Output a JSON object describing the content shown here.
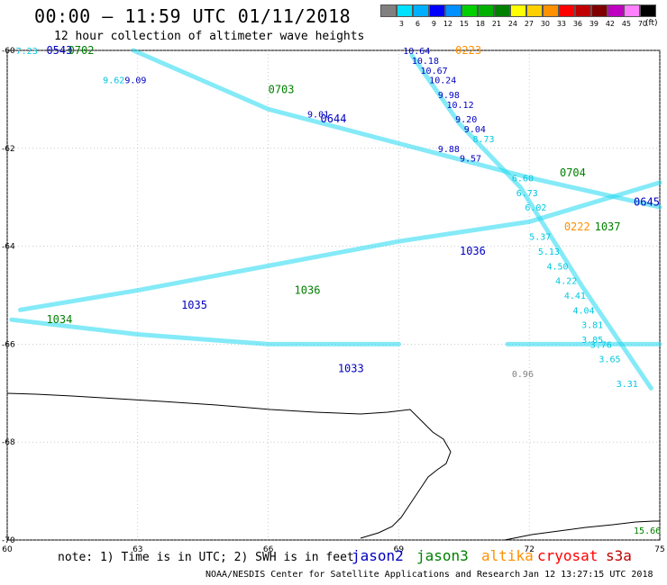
{
  "header": {
    "title": "00:00 – 11:59 UTC 01/11/2018",
    "subtitle": "12 hour collection of altimeter wave heights"
  },
  "colorbar": {
    "colors": [
      "#808080",
      "#00e0ff",
      "#00b0ff",
      "#0000ff",
      "#0090ff",
      "#00d000",
      "#00b000",
      "#008000",
      "#ffff00",
      "#ffd000",
      "#ff9000",
      "#ff0000",
      "#c00000",
      "#800000",
      "#c000c0",
      "#ff80ff",
      "#000000"
    ],
    "labels": [
      "3",
      "6",
      "9",
      "12",
      "15",
      "18",
      "21",
      "24",
      "27",
      "30",
      "33",
      "36",
      "39",
      "42",
      "45",
      "70"
    ],
    "unit": "(ft)"
  },
  "axes": {
    "x_ticks": [
      "60",
      "63",
      "66",
      "69",
      "72",
      "75"
    ],
    "y_ticks": [
      "-60",
      "-62",
      "-64",
      "-66",
      "-68",
      "-70"
    ]
  },
  "track_labels": [
    {
      "text": "7.23",
      "color": "#00c8e0",
      "lon": 60.2,
      "lat": -60.0
    },
    {
      "text": "0543",
      "color": "#0000c0",
      "lon": 60.9,
      "lat": -60.0
    },
    {
      "text": "0702",
      "color": "#008000",
      "lon": 61.4,
      "lat": -60.0
    },
    {
      "text": "9.62",
      "color": "#00c8e0",
      "lon": 62.2,
      "lat": -60.6
    },
    {
      "text": "9.09",
      "color": "#0000c0",
      "lon": 62.7,
      "lat": -60.6
    },
    {
      "text": "0703",
      "color": "#008000",
      "lon": 66.0,
      "lat": -60.8
    },
    {
      "text": "0644",
      "color": "#0000c0",
      "lon": 67.2,
      "lat": -61.4
    },
    {
      "text": "9.01",
      "color": "#0000c0",
      "lon": 66.9,
      "lat": -61.3
    },
    {
      "text": "10.64",
      "color": "#0000c0",
      "lon": 69.1,
      "lat": -60.0
    },
    {
      "text": "0223",
      "color": "#ff9000",
      "lon": 70.3,
      "lat": -60.0
    },
    {
      "text": "10.18",
      "color": "#0000c0",
      "lon": 69.3,
      "lat": -60.2
    },
    {
      "text": "10.67",
      "color": "#0000c0",
      "lon": 69.5,
      "lat": -60.4
    },
    {
      "text": "10.24",
      "color": "#0000c0",
      "lon": 69.7,
      "lat": -60.6
    },
    {
      "text": "9.98",
      "color": "#0000c0",
      "lon": 69.9,
      "lat": -60.9
    },
    {
      "text": "10.12",
      "color": "#0000c0",
      "lon": 70.1,
      "lat": -61.1
    },
    {
      "text": "9.20",
      "color": "#0000c0",
      "lon": 70.3,
      "lat": -61.4
    },
    {
      "text": "9.04",
      "color": "#0000c0",
      "lon": 70.5,
      "lat": -61.6
    },
    {
      "text": "8.73",
      "color": "#00c8e0",
      "lon": 70.7,
      "lat": -61.8
    },
    {
      "text": "9.88",
      "color": "#0000c0",
      "lon": 69.9,
      "lat": -62.0
    },
    {
      "text": "9.57",
      "color": "#0000c0",
      "lon": 70.4,
      "lat": -62.2
    },
    {
      "text": "0704",
      "color": "#008000",
      "lon": 72.7,
      "lat": -62.5
    },
    {
      "text": "6.60",
      "color": "#00c8e0",
      "lon": 71.6,
      "lat": -62.6
    },
    {
      "text": "6.73",
      "color": "#00c8e0",
      "lon": 71.7,
      "lat": -62.9
    },
    {
      "text": "6.02",
      "color": "#00c8e0",
      "lon": 71.9,
      "lat": -63.2
    },
    {
      "text": "0645",
      "color": "#0000c0",
      "lon": 74.4,
      "lat": -63.1
    },
    {
      "text": "0222",
      "color": "#ff9000",
      "lon": 72.8,
      "lat": -63.6
    },
    {
      "text": "1037",
      "color": "#008000",
      "lon": 73.5,
      "lat": -63.6
    },
    {
      "text": "5.37",
      "color": "#00c8e0",
      "lon": 72.0,
      "lat": -63.8
    },
    {
      "text": "1036",
      "color": "#0000c0",
      "lon": 70.4,
      "lat": -64.1
    },
    {
      "text": "5.13",
      "color": "#00c8e0",
      "lon": 72.2,
      "lat": -64.1
    },
    {
      "text": "4.50",
      "color": "#00c8e0",
      "lon": 72.4,
      "lat": -64.4
    },
    {
      "text": "4.22",
      "color": "#00c8e0",
      "lon": 72.6,
      "lat": -64.7
    },
    {
      "text": "4.41",
      "color": "#00c8e0",
      "lon": 72.8,
      "lat": -65.0
    },
    {
      "text": "4.04",
      "color": "#00c8e0",
      "lon": 73.0,
      "lat": -65.3
    },
    {
      "text": "3.81",
      "color": "#00c8e0",
      "lon": 73.2,
      "lat": -65.6
    },
    {
      "text": "3.85",
      "color": "#00c8e0",
      "lon": 73.2,
      "lat": -65.9
    },
    {
      "text": "3.76",
      "color": "#00c8e0",
      "lon": 73.4,
      "lat": -66.0
    },
    {
      "text": "3.65",
      "color": "#00c8e0",
      "lon": 73.6,
      "lat": -66.3
    },
    {
      "text": "3.31",
      "color": "#00c8e0",
      "lon": 74.0,
      "lat": -66.8
    },
    {
      "text": "0.96",
      "color": "#808080",
      "lon": 71.6,
      "lat": -66.6
    },
    {
      "text": "1036",
      "color": "#008000",
      "lon": 66.6,
      "lat": -64.9
    },
    {
      "text": "1035",
      "color": "#0000c0",
      "lon": 64.0,
      "lat": -65.2
    },
    {
      "text": "1034",
      "color": "#008000",
      "lon": 60.9,
      "lat": -65.5
    },
    {
      "text": "1033",
      "color": "#0000c0",
      "lon": 67.6,
      "lat": -66.5
    },
    {
      "text": "15.66",
      "color": "#008000",
      "lon": 74.4,
      "lat": -69.8
    }
  ],
  "note": {
    "text": "note: 1) Time is in UTC; 2) SWH is in feet"
  },
  "satellites": [
    {
      "name": "jason2",
      "color": "#0000c0"
    },
    {
      "name": "jason3",
      "color": "#008000"
    },
    {
      "name": "altika",
      "color": "#ff9000"
    },
    {
      "name": "cryosat",
      "color": "#ff0000"
    },
    {
      "name": "s3a",
      "color": "#c00000"
    }
  ],
  "footer": {
    "credit": "NOAA/NESDIS Center for Satellite Applications and Research",
    "timestamp": "Jan 12 13:27:15 UTC 2018"
  }
}
